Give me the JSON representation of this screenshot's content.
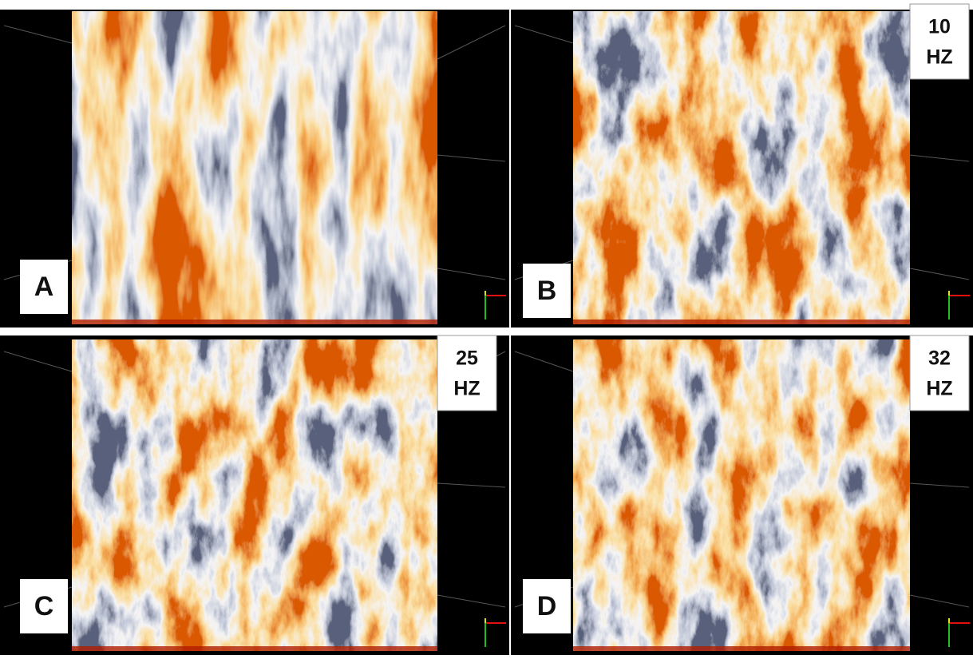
{
  "panels": [
    {
      "label": "A"
    },
    {
      "label": "B",
      "frequency": {
        "value": "10",
        "unit": "HZ"
      }
    },
    {
      "label": "C",
      "frequency": {
        "value": "25",
        "unit": "HZ"
      }
    },
    {
      "label": "D",
      "frequency": {
        "value": "32",
        "unit": "HZ"
      }
    }
  ]
}
